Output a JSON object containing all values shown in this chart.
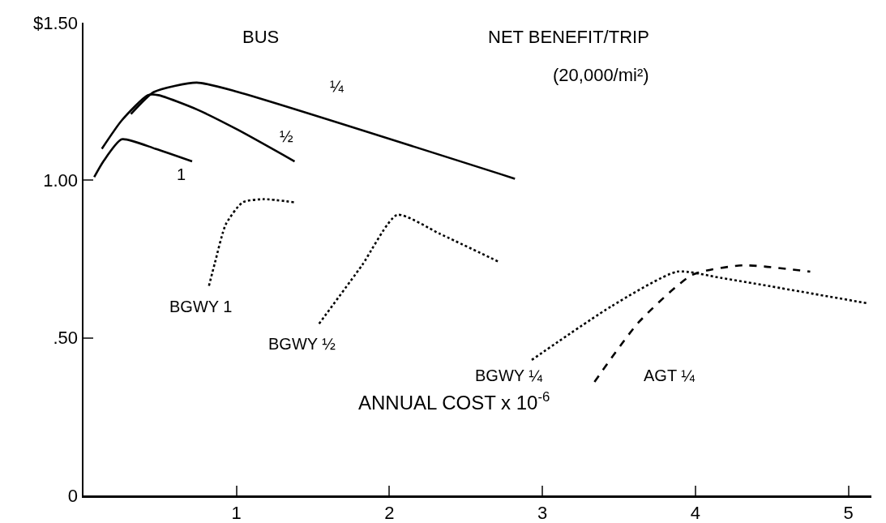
{
  "chart_data": {
    "type": "line",
    "title": "NET BENEFIT/TRIP",
    "subtitle": "(20,000/mi²)",
    "xlabel": "ANNUAL COST x 10$^{-6}$",
    "annotations": [
      "BUS"
    ],
    "xlim": [
      0,
      5.15
    ],
    "xticks": [
      1,
      2,
      3,
      4,
      5
    ],
    "ylim": [
      0,
      1.5
    ],
    "yticks": [
      {
        "value": 0,
        "label": "0"
      },
      {
        "value": 0.5,
        "label": ".50"
      },
      {
        "value": 1,
        "label": "1.00"
      },
      {
        "value": 1.5,
        "label": "$1.50"
      }
    ],
    "grid": false,
    "legend": false,
    "marker": "none",
    "series": [
      {
        "name": "1",
        "color": "#000000",
        "line_style": "solid",
        "x": [
          0.07,
          0.13,
          0.25,
          0.47,
          0.71
        ],
        "values": [
          1.01,
          1.06,
          1.13,
          1.1,
          1.06
        ]
      },
      {
        "name": "½",
        "color": "#000000",
        "line_style": "solid",
        "x": [
          0.12,
          0.25,
          0.42,
          0.49,
          0.74,
          1.01,
          1.38
        ],
        "values": [
          1.1,
          1.19,
          1.27,
          1.27,
          1.225,
          1.16,
          1.06
        ]
      },
      {
        "name": "¼",
        "color": "#000000",
        "line_style": "solid",
        "x": [
          0.31,
          0.46,
          0.74,
          1.01,
          2.82
        ],
        "values": [
          1.21,
          1.28,
          1.31,
          1.28,
          1.005
        ]
      },
      {
        "name": "BGWY 1",
        "color": "#000000",
        "line_style": "dotted",
        "x": [
          0.82,
          0.86,
          0.93,
          1.04,
          1.18,
          1.38
        ],
        "values": [
          0.665,
          0.74,
          0.86,
          0.93,
          0.94,
          0.93
        ]
      },
      {
        "name": "BGWY ½",
        "color": "#000000",
        "line_style": "dotted",
        "x": [
          1.54,
          1.82,
          2.05,
          2.33,
          2.72
        ],
        "values": [
          0.545,
          0.73,
          0.89,
          0.83,
          0.74
        ]
      },
      {
        "name": "BGWY ¼",
        "color": "#000000",
        "line_style": "dotted",
        "x": [
          2.93,
          3.45,
          3.88,
          4.17,
          5.12
        ],
        "values": [
          0.43,
          0.6,
          0.71,
          0.69,
          0.61
        ]
      },
      {
        "name": "AGT ¼",
        "color": "#000000",
        "line_style": "dashed",
        "x": [
          3.34,
          3.63,
          3.98,
          4.31,
          4.75
        ],
        "values": [
          0.36,
          0.55,
          0.7,
          0.73,
          0.71
        ]
      }
    ]
  }
}
